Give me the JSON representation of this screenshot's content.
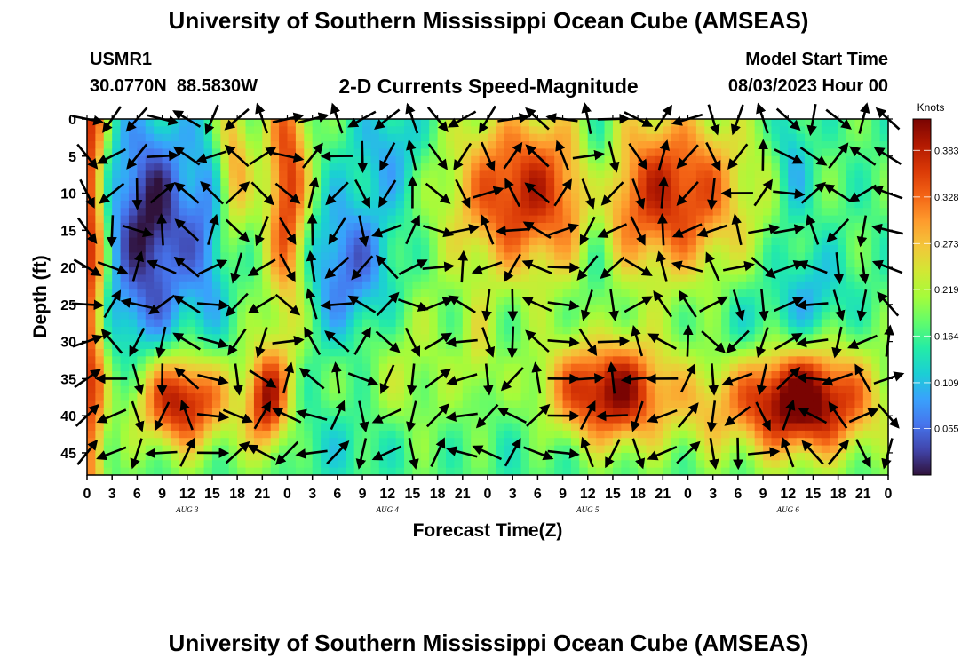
{
  "chart_data": {
    "type": "heatmap",
    "title": "University of Southern Mississippi Ocean Cube (AMSEAS)",
    "footer_title": "University of Southern Mississippi Ocean Cube (AMSEAS)",
    "station": "USMR1",
    "location": "30.0770N  88.5830W",
    "subtitle": "2-D Currents Speed-Magnitude",
    "model_label": "Model Start Time",
    "model_start": "08/03/2023 Hour 00",
    "xlabel": "Forecast Time(Z)",
    "ylabel": "Depth (ft)",
    "colorbar_title": "Knots",
    "x_ticks": [
      "0",
      "3",
      "6",
      "9",
      "12",
      "15",
      "18",
      "21",
      "0",
      "3",
      "6",
      "9",
      "12",
      "15",
      "18",
      "21",
      "0",
      "3",
      "6",
      "9",
      "12",
      "15",
      "18",
      "21",
      "0",
      "3",
      "6",
      "9",
      "12",
      "15",
      "18",
      "21",
      "0"
    ],
    "day_labels": [
      "AUG 3",
      "AUG 4",
      "AUG 5",
      "AUG 6"
    ],
    "y_ticks": [
      "0",
      "5",
      "10",
      "15",
      "20",
      "25",
      "30",
      "35",
      "40",
      "45"
    ],
    "ylim": [
      0,
      48
    ],
    "x_range_hours": [
      0,
      96
    ],
    "colorbar_ticks": [
      "0.383",
      "0.328",
      "0.273",
      "0.219",
      "0.164",
      "0.109",
      "0.055"
    ],
    "colorbar_range": [
      0,
      0.42
    ],
    "colormap": [
      "#30123b",
      "#4145ab",
      "#4675ed",
      "#39a2fc",
      "#1bcfd4",
      "#24eca6",
      "#61fc6c",
      "#a4fc3b",
      "#d1e834",
      "#f3c63a",
      "#fe9b2d",
      "#f36315",
      "#d93806",
      "#b11901",
      "#7a0402"
    ],
    "speed_blobs": [
      {
        "t": 0.5,
        "d": 15,
        "st": 1.2,
        "sd": 40,
        "v": 0.2
      },
      {
        "t": 7.5,
        "d": 14,
        "st": 3.5,
        "sd": 10,
        "v": -0.17
      },
      {
        "t": 14.5,
        "d": 15,
        "st": 2.0,
        "sd": 11,
        "v": -0.08
      },
      {
        "t": 17.5,
        "d": 6,
        "st": 1.5,
        "sd": 8,
        "v": 0.13
      },
      {
        "t": 24.0,
        "d": 10,
        "st": 1.8,
        "sd": 13,
        "v": 0.2
      },
      {
        "t": 31.5,
        "d": 20,
        "st": 4.0,
        "sd": 7,
        "v": -0.12
      },
      {
        "t": 36.5,
        "d": 4,
        "st": 3.0,
        "sd": 5,
        "v": -0.07
      },
      {
        "t": 52.0,
        "d": 10,
        "st": 6.0,
        "sd": 8,
        "v": 0.2
      },
      {
        "t": 70.0,
        "d": 10,
        "st": 6.5,
        "sd": 8,
        "v": 0.2
      },
      {
        "t": 61.0,
        "d": 12,
        "st": 1.5,
        "sd": 10,
        "v": -0.08
      },
      {
        "t": 62.0,
        "d": 5,
        "st": 2.0,
        "sd": 4,
        "v": -0.05
      },
      {
        "t": 84.5,
        "d": 6,
        "st": 1.5,
        "sd": 6,
        "v": -0.07
      },
      {
        "t": 87.0,
        "d": 24,
        "st": 3.0,
        "sd": 5,
        "v": -0.06
      },
      {
        "t": 11.5,
        "d": 38,
        "st": 3.8,
        "sd": 4.5,
        "v": 0.23
      },
      {
        "t": 21.5,
        "d": 38,
        "st": 1.8,
        "sd": 5,
        "v": 0.21
      },
      {
        "t": 47.0,
        "d": 32,
        "st": 1.2,
        "sd": 5,
        "v": 0.06
      },
      {
        "t": 62.5,
        "d": 37,
        "st": 5.5,
        "sd": 5,
        "v": 0.25
      },
      {
        "t": 85.5,
        "d": 38,
        "st": 6.0,
        "sd": 5,
        "v": 0.28
      },
      {
        "t": 74.5,
        "d": 40,
        "st": 2.0,
        "sd": 4,
        "v": 0.04
      },
      {
        "t": 38.0,
        "d": 34,
        "st": 5.0,
        "sd": 9,
        "v": 0.05
      },
      {
        "t": 32.0,
        "d": 44,
        "st": 6.0,
        "sd": 4,
        "v": -0.04
      },
      {
        "t": 56.0,
        "d": 42,
        "st": 5.0,
        "sd": 5,
        "v": -0.03
      },
      {
        "t": 80.0,
        "d": 28,
        "st": 4.0,
        "sd": 4,
        "v": -0.04
      },
      {
        "t": 5.0,
        "d": 27,
        "st": 5.0,
        "sd": 4,
        "v": -0.03
      }
    ],
    "speed_base": 0.17,
    "vector_spacing_hours": 3,
    "vector_depths_ft": [
      0,
      5,
      10,
      15,
      20,
      25,
      30,
      35,
      40,
      45
    ]
  }
}
